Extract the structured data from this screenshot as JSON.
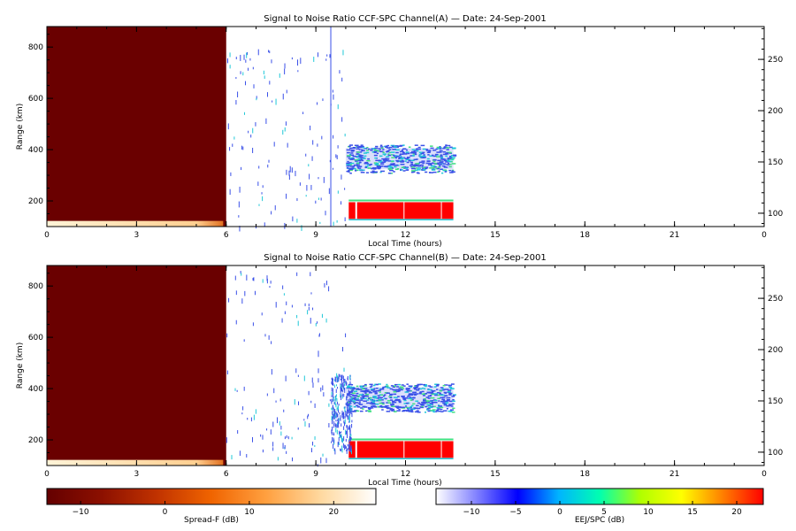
{
  "chart_data": [
    {
      "type": "heatmap",
      "title": "Signal to Noise Ratio CCF-SPC Channel(A) — Date: 24-Sep-2001",
      "xlabel": "Local Time (hours)",
      "ylabel": "Range (km)",
      "xlim": [
        0,
        24
      ],
      "ylim_left": [
        100,
        880
      ],
      "ylim_right": [
        87,
        282
      ],
      "x_ticks": [
        "0",
        "3",
        "6",
        "9",
        "12",
        "15",
        "18",
        "21",
        "0"
      ],
      "y_ticks_left": [
        200,
        400,
        600,
        800
      ],
      "y_ticks_right": [
        100,
        150,
        200,
        250
      ],
      "regions": [
        {
          "kind": "spread-f-background",
          "x": [
            0,
            6
          ],
          "y": [
            100,
            880
          ],
          "value_db": -13
        },
        {
          "kind": "spread-f-bottom-band",
          "x": [
            0,
            5.9
          ],
          "y": [
            100,
            122
          ],
          "value_db": 22
        },
        {
          "kind": "eej-red-band",
          "x": [
            10.1,
            13.6
          ],
          "y": [
            130,
            195
          ],
          "value_db": 22
        },
        {
          "kind": "eej-upper-echoes",
          "x": [
            10.0,
            13.6
          ],
          "y": [
            310,
            420
          ],
          "value_db": -4
        },
        {
          "kind": "eej-vertical-line",
          "x": [
            9.5,
            9.5
          ],
          "y": [
            100,
            880
          ],
          "value_db": -8
        },
        {
          "kind": "sparse-echoes",
          "x": [
            6,
            10
          ],
          "y": [
            100,
            800
          ],
          "value_db": -8
        }
      ]
    },
    {
      "type": "heatmap",
      "title": "Signal to Noise Ratio CCF-SPC Channel(B) — Date: 24-Sep-2001",
      "xlabel": "Local Time (hours)",
      "ylabel": "Range (km)",
      "xlim": [
        0,
        24
      ],
      "ylim_left": [
        100,
        880
      ],
      "ylim_right": [
        87,
        282
      ],
      "x_ticks": [
        "0",
        "3",
        "6",
        "9",
        "12",
        "15",
        "18",
        "21",
        "0"
      ],
      "y_ticks_left": [
        200,
        400,
        600,
        800
      ],
      "y_ticks_right": [
        100,
        150,
        200,
        250
      ],
      "regions": [
        {
          "kind": "spread-f-background",
          "x": [
            0,
            6
          ],
          "y": [
            100,
            880
          ],
          "value_db": -13
        },
        {
          "kind": "spread-f-bottom-band",
          "x": [
            0,
            5.9
          ],
          "y": [
            100,
            122
          ],
          "value_db": 22
        },
        {
          "kind": "eej-red-band",
          "x": [
            10.1,
            13.6
          ],
          "y": [
            130,
            195
          ],
          "value_db": 22
        },
        {
          "kind": "eej-upper-echoes",
          "x": [
            10.0,
            13.6
          ],
          "y": [
            310,
            420
          ],
          "value_db": -4
        },
        {
          "kind": "eej-plume",
          "x": [
            9.5,
            10.2
          ],
          "y": [
            160,
            460
          ],
          "value_db": -6
        },
        {
          "kind": "sparse-echoes",
          "x": [
            6,
            10
          ],
          "y": [
            100,
            860
          ],
          "value_db": -8
        }
      ]
    }
  ],
  "colorbars": [
    {
      "label": "Spread-F (dB)",
      "range": [
        -14,
        25
      ],
      "ticks": [
        -10,
        0,
        10,
        20
      ],
      "colors": [
        "#640000",
        "#8c1000",
        "#c03200",
        "#f06400",
        "#ffa040",
        "#ffd9a0",
        "#ffffff"
      ]
    },
    {
      "label": "EEJ/SPC (dB)",
      "range": [
        -14,
        23
      ],
      "ticks": [
        -10,
        -5,
        0,
        5,
        10,
        15,
        20
      ],
      "colors": [
        "#ffffff",
        "#8080ff",
        "#0000ff",
        "#00b4ff",
        "#00ffb0",
        "#b0ff00",
        "#ffff00",
        "#ff8000",
        "#ff0000"
      ]
    }
  ],
  "colors": {
    "spread_f_dark": "#6a0000",
    "eej_red": "#ff0000",
    "echo_blue": "#3a50e8",
    "echo_cyan": "#20c8d8",
    "echo_green": "#40e080"
  }
}
